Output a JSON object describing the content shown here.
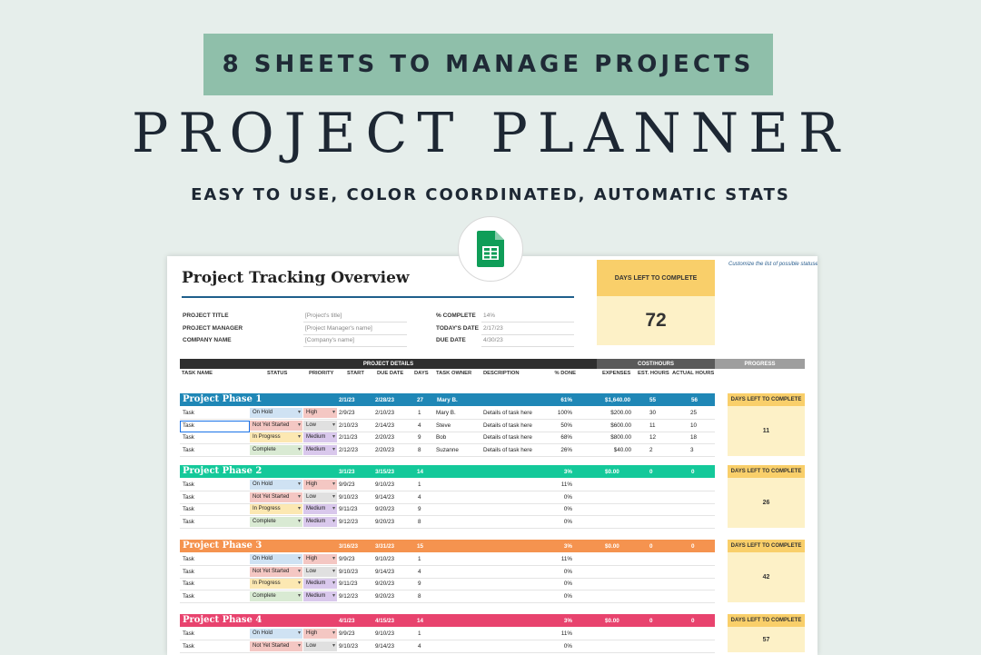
{
  "banner": {
    "text": "8 SHEETS TO MANAGE PROJECTS"
  },
  "main_title": "PROJECT PLANNER",
  "subtitle": "EASY TO USE, COLOR COORDINATED, AUTOMATIC STATS",
  "badge_icon": "google-sheets-icon",
  "sheet": {
    "title": "Project Tracking Overview",
    "info_left": [
      {
        "label": "PROJECT TITLE",
        "value": "[Project's title]"
      },
      {
        "label": "PROJECT MANAGER",
        "value": "[Project Manager's name]"
      },
      {
        "label": "COMPANY NAME",
        "value": "[Company's name]"
      }
    ],
    "info_right": [
      {
        "label": "% COMPLETE",
        "value": "14%"
      },
      {
        "label": "TODAY'S DATE",
        "value": "2/17/23"
      },
      {
        "label": "DUE DATE",
        "value": "4/30/23"
      }
    ],
    "days_left": {
      "label": "DAYS LEFT TO COMPLETE",
      "value": "72"
    },
    "note": "Customize the list of possible statuses + priorities to the right so that the Status + Priority columns can use standardized values.",
    "section_headers": {
      "details": "PROJECT DETAILS",
      "cost": "COST/HOURS",
      "progress": "PROGRESS"
    },
    "columns": [
      "TASK NAME",
      "STATUS",
      "PRIORITY",
      "START",
      "DUE DATE",
      "DAYS",
      "TASK OWNER",
      "DESCRIPTION",
      "% DONE",
      "EXPENSES",
      "EST. HOURS",
      "ACTUAL HOURS"
    ],
    "colors": {
      "status": {
        "On Hold": "#cfe2f3",
        "Not Yet Started": "#f4c7c3",
        "In Progress": "#fce8b2",
        "Complete": "#d9ead3"
      },
      "priority": {
        "High": "#f4c7c3",
        "Low": "#e0e0e0",
        "Medium": "#d9c8ec"
      }
    },
    "phases": [
      {
        "name": "Project Phase 1",
        "color": "#1f87b6",
        "start": "2/1/23",
        "due": "2/28/23",
        "days": "27",
        "owner": "Mary B.",
        "pct": "61%",
        "expenses": "$1,640.00",
        "est": "55",
        "actual": "56",
        "days_left_label": "DAYS LEFT TO COMPLETE",
        "days_left": "11",
        "tasks": [
          {
            "name": "Task",
            "status": "On Hold",
            "priority": "High",
            "start": "2/9/23",
            "due": "2/10/23",
            "days": "1",
            "owner": "Mary B.",
            "desc": "Details of task here",
            "pct": "100%",
            "expenses": "$200.00",
            "est": "30",
            "actual": "25"
          },
          {
            "name": "Task",
            "status": "Not Yet Started",
            "priority": "Low",
            "start": "2/10/23",
            "due": "2/14/23",
            "days": "4",
            "owner": "Steve",
            "desc": "Details of task here",
            "pct": "50%",
            "expenses": "$600.00",
            "est": "11",
            "actual": "10"
          },
          {
            "name": "Task",
            "status": "In Progress",
            "priority": "Medium",
            "start": "2/11/23",
            "due": "2/20/23",
            "days": "9",
            "owner": "Bob",
            "desc": "Details of task here",
            "pct": "68%",
            "expenses": "$800.00",
            "est": "12",
            "actual": "18"
          },
          {
            "name": "Task",
            "status": "Complete",
            "priority": "Medium",
            "start": "2/12/23",
            "due": "2/20/23",
            "days": "8",
            "owner": "Suzanne",
            "desc": "Details of task here",
            "pct": "26%",
            "expenses": "$40.00",
            "est": "2",
            "actual": "3"
          }
        ]
      },
      {
        "name": "Project Phase 2",
        "color": "#14c99a",
        "start": "3/1/23",
        "due": "3/15/23",
        "days": "14",
        "owner": "",
        "pct": "3%",
        "expenses": "$0.00",
        "est": "0",
        "actual": "0",
        "days_left_label": "DAYS LEFT TO COMPLETE",
        "days_left": "26",
        "tasks": [
          {
            "name": "Task",
            "status": "On Hold",
            "priority": "High",
            "start": "9/9/23",
            "due": "9/10/23",
            "days": "1",
            "owner": "",
            "desc": "",
            "pct": "11%",
            "expenses": "",
            "est": "",
            "actual": ""
          },
          {
            "name": "Task",
            "status": "Not Yet Started",
            "priority": "Low",
            "start": "9/10/23",
            "due": "9/14/23",
            "days": "4",
            "owner": "",
            "desc": "",
            "pct": "0%",
            "expenses": "",
            "est": "",
            "actual": ""
          },
          {
            "name": "Task",
            "status": "In Progress",
            "priority": "Medium",
            "start": "9/11/23",
            "due": "9/20/23",
            "days": "9",
            "owner": "",
            "desc": "",
            "pct": "0%",
            "expenses": "",
            "est": "",
            "actual": ""
          },
          {
            "name": "Task",
            "status": "Complete",
            "priority": "Medium",
            "start": "9/12/23",
            "due": "9/20/23",
            "days": "8",
            "owner": "",
            "desc": "",
            "pct": "0%",
            "expenses": "",
            "est": "",
            "actual": ""
          }
        ]
      },
      {
        "name": "Project Phase 3",
        "color": "#f5934f",
        "start": "3/16/23",
        "due": "3/31/23",
        "days": "15",
        "owner": "",
        "pct": "3%",
        "expenses": "$0.00",
        "est": "0",
        "actual": "0",
        "days_left_label": "DAYS LEFT TO COMPLETE",
        "days_left": "42",
        "tasks": [
          {
            "name": "Task",
            "status": "On Hold",
            "priority": "High",
            "start": "9/9/23",
            "due": "9/10/23",
            "days": "1",
            "owner": "",
            "desc": "",
            "pct": "11%",
            "expenses": "",
            "est": "",
            "actual": ""
          },
          {
            "name": "Task",
            "status": "Not Yet Started",
            "priority": "Low",
            "start": "9/10/23",
            "due": "9/14/23",
            "days": "4",
            "owner": "",
            "desc": "",
            "pct": "0%",
            "expenses": "",
            "est": "",
            "actual": ""
          },
          {
            "name": "Task",
            "status": "In Progress",
            "priority": "Medium",
            "start": "9/11/23",
            "due": "9/20/23",
            "days": "9",
            "owner": "",
            "desc": "",
            "pct": "0%",
            "expenses": "",
            "est": "",
            "actual": ""
          },
          {
            "name": "Task",
            "status": "Complete",
            "priority": "Medium",
            "start": "9/12/23",
            "due": "9/20/23",
            "days": "8",
            "owner": "",
            "desc": "",
            "pct": "0%",
            "expenses": "",
            "est": "",
            "actual": ""
          }
        ]
      },
      {
        "name": "Project Phase 4",
        "color": "#e8436e",
        "start": "4/1/23",
        "due": "4/15/23",
        "days": "14",
        "owner": "",
        "pct": "3%",
        "expenses": "$0.00",
        "est": "0",
        "actual": "0",
        "days_left_label": "DAYS LEFT TO COMPLETE",
        "days_left": "57",
        "tasks": [
          {
            "name": "Task",
            "status": "On Hold",
            "priority": "High",
            "start": "9/9/23",
            "due": "9/10/23",
            "days": "1",
            "owner": "",
            "desc": "",
            "pct": "11%",
            "expenses": "",
            "est": "",
            "actual": ""
          },
          {
            "name": "Task",
            "status": "Not Yet Started",
            "priority": "Low",
            "start": "9/10/23",
            "due": "9/14/23",
            "days": "4",
            "owner": "",
            "desc": "",
            "pct": "0%",
            "expenses": "",
            "est": "",
            "actual": ""
          }
        ]
      }
    ]
  }
}
